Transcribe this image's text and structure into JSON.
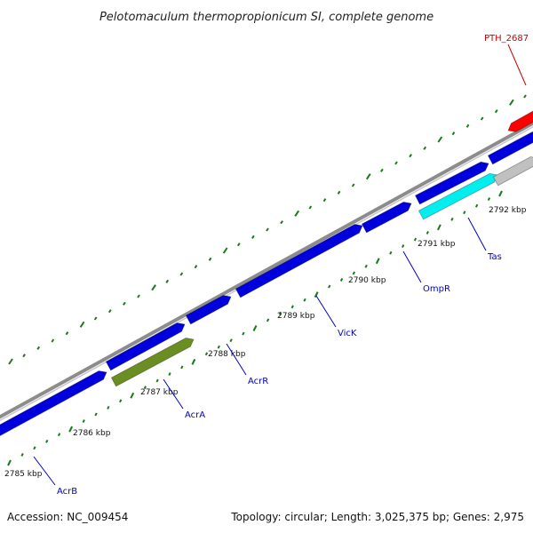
{
  "title": "Pelotomaculum thermopropionicum SI, complete genome",
  "footer": {
    "accession": "Accession: NC_009454",
    "summary": "Topology: circular; Length: 3,025,375 bp; Genes: 2,975"
  },
  "colors": {
    "forward_strand": "#0000dd",
    "reverse_strand_olive": "#6b8e23",
    "reverse_strand_cyan": "#00eeee",
    "highlight": "#ff0000",
    "pseudogene": "#c0c0c0",
    "backbone": "#8c8c8c",
    "tick": "#1a7a1a",
    "label_forward": "#0000cc",
    "label_highlight": "#cc0000"
  },
  "tick_labels": [
    "2785 kbp",
    "2786 kbp",
    "2787 kbp",
    "2788 kbp",
    "2789 kbp",
    "2790 kbp",
    "2791 kbp",
    "2792 kbp"
  ],
  "gene_labels": [
    {
      "name": "AcrB",
      "color": "#0000cc"
    },
    {
      "name": "AcrA",
      "color": "#0000cc"
    },
    {
      "name": "AcrR",
      "color": "#0000cc"
    },
    {
      "name": "VicK",
      "color": "#0000cc"
    },
    {
      "name": "OmpR",
      "color": "#0000cc"
    },
    {
      "name": "Tas",
      "color": "#0000cc"
    },
    {
      "name": "PTH_2687",
      "color": "#cc0000"
    }
  ]
}
